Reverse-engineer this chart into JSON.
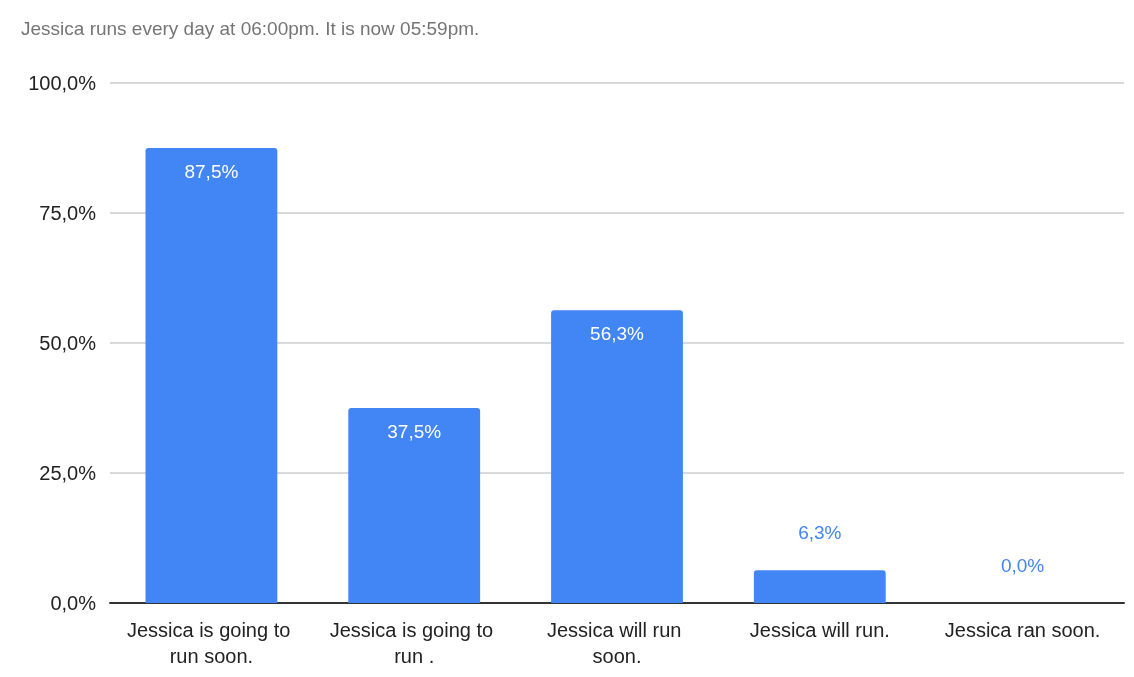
{
  "chart_data": {
    "type": "bar",
    "title": "Jessica runs every day at 06:00pm. It is now 05:59pm.",
    "categories": [
      "Jessica is going to run soon.",
      "Jessica is going to run .",
      "Jessica will run soon.",
      "Jessica will run.",
      "Jessica ran soon."
    ],
    "values": [
      87.5,
      37.5,
      56.3,
      6.3,
      0.0
    ],
    "value_labels": [
      "87,5%",
      "37,5%",
      "56,3%",
      "6,3%",
      "0,0%"
    ],
    "color": "#4285f4",
    "ylim": [
      0,
      100
    ],
    "yticks": [
      {
        "value": 0,
        "label": "0,0%"
      },
      {
        "value": 25,
        "label": "25,0%"
      },
      {
        "value": 50,
        "label": "50,0%"
      },
      {
        "value": 75,
        "label": "75,0%"
      },
      {
        "value": 100,
        "label": "100,0%"
      }
    ],
    "grid": "y"
  }
}
